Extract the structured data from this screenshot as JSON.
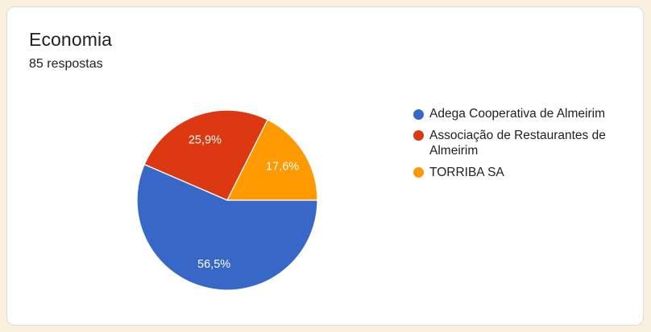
{
  "page": {
    "background_color": "#F9F0DE",
    "card_background_color": "#FFFFFF",
    "card_border_color": "#DADCE0"
  },
  "header": {
    "title": "Economia",
    "responses_label": "85 respostas"
  },
  "chart_data": {
    "type": "pie",
    "title": "Economia",
    "subtitle": "85 respostas",
    "labels": [
      "Adega Cooperativa de Almeirim",
      "Associação de Restaurantes de Almeirim",
      "TORRIBA SA"
    ],
    "values": [
      56.5,
      25.9,
      17.6
    ],
    "percent_labels": [
      "56,5%",
      "25,9%",
      "17,6%"
    ],
    "colors": [
      "#3768C8",
      "#DC3912",
      "#FF9900"
    ],
    "slice_border_color": "#FFFFFF",
    "percent_label_color": "#FFFFFF",
    "start_angle_deg": 90,
    "direction": "clockwise",
    "legend_position": "right"
  }
}
